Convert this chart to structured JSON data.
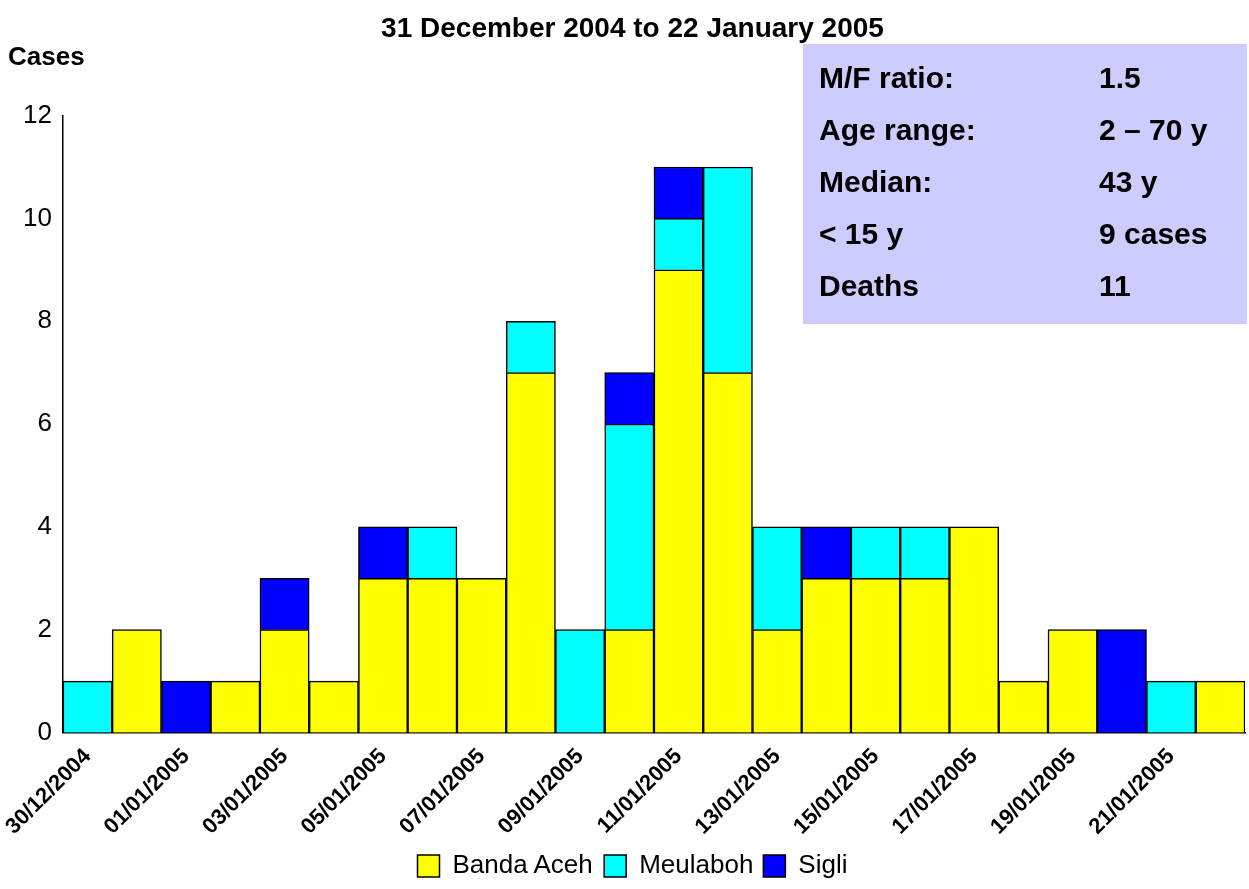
{
  "chart_data": {
    "type": "bar",
    "title": "31 December 2004 to 22 January 2005",
    "ylabel": "Cases",
    "categories": [
      "30/12/2004",
      null,
      "01/01/2005",
      null,
      "03/01/2005",
      null,
      "05/01/2005",
      null,
      "07/01/2005",
      null,
      "09/01/2005",
      null,
      "11/01/2005",
      null,
      "13/01/2005",
      null,
      "15/01/2005",
      null,
      "17/01/2005",
      null,
      "19/01/2005",
      null,
      "21/01/2005",
      null
    ],
    "series": [
      {
        "name": "Banda Aceh",
        "color": "#ffff00",
        "values": [
          0,
          2,
          0,
          1,
          2,
          1,
          3,
          3,
          3,
          7,
          0,
          2,
          9,
          7,
          2,
          3,
          3,
          3,
          4,
          1,
          2,
          0,
          0,
          1
        ]
      },
      {
        "name": "Meulaboh",
        "color": "#00ffff",
        "values": [
          1,
          0,
          0,
          0,
          0,
          0,
          0,
          1,
          0,
          1,
          2,
          4,
          1,
          4,
          2,
          0,
          1,
          1,
          0,
          0,
          0,
          0,
          1,
          0
        ]
      },
      {
        "name": "Sigli",
        "color": "#0000ff",
        "values": [
          0,
          0,
          1,
          0,
          1,
          0,
          1,
          0,
          0,
          0,
          0,
          1,
          1,
          0,
          0,
          1,
          0,
          0,
          0,
          0,
          0,
          2,
          0,
          0
        ]
      }
    ],
    "stacked": true,
    "ylim": [
      0,
      12
    ],
    "yticks": [
      0,
      2,
      4,
      6,
      8,
      10,
      12
    ],
    "grid": false,
    "legend": "bottom",
    "annotations": [
      "M/F ratio:",
      "1.5",
      "Age range:",
      "2 – 70 y",
      "Median:",
      "43 y",
      "< 15 y",
      "9 cases",
      "Deaths",
      "11"
    ]
  }
}
